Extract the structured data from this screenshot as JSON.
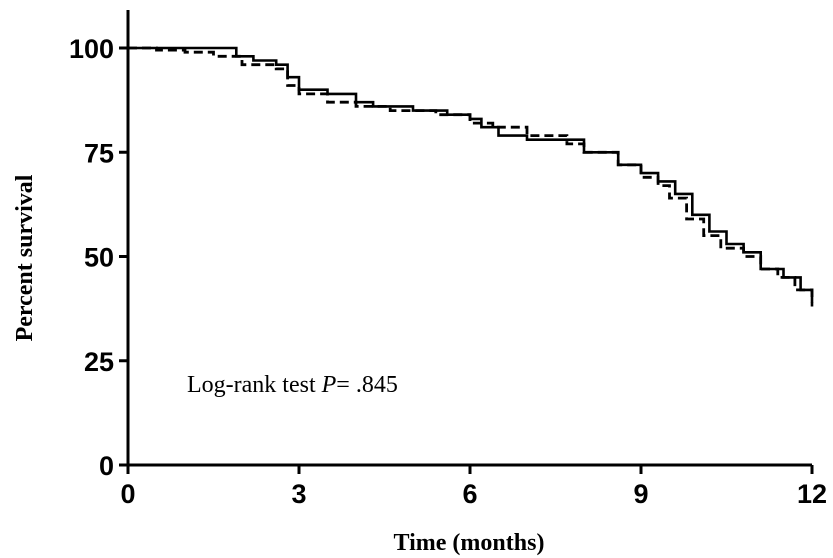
{
  "chart_data": {
    "type": "line",
    "subtype": "kaplan-meier",
    "xlabel": "Time (months)",
    "ylabel": "Percent survival",
    "xlim": [
      0,
      12
    ],
    "ylim": [
      0,
      110
    ],
    "xticks": [
      0,
      3,
      6,
      9,
      12
    ],
    "yticks": [
      0,
      25,
      50,
      75,
      100
    ],
    "grid": false,
    "annotation": {
      "prefix": "Log-rank test ",
      "italic": "P",
      "suffix": "= .845"
    },
    "series": [
      {
        "style": "solid",
        "points": [
          [
            0,
            100
          ],
          [
            1.8,
            100
          ],
          [
            1.9,
            98
          ],
          [
            2.2,
            97
          ],
          [
            2.6,
            96
          ],
          [
            2.8,
            93
          ],
          [
            3.0,
            90
          ],
          [
            3.5,
            89
          ],
          [
            4.0,
            87
          ],
          [
            4.3,
            86
          ],
          [
            5.0,
            85
          ],
          [
            5.6,
            84
          ],
          [
            6.0,
            83
          ],
          [
            6.2,
            81
          ],
          [
            6.5,
            79
          ],
          [
            7.0,
            78
          ],
          [
            7.7,
            78
          ],
          [
            8.0,
            75
          ],
          [
            8.6,
            72
          ],
          [
            9.0,
            70
          ],
          [
            9.3,
            68
          ],
          [
            9.6,
            65
          ],
          [
            9.9,
            60
          ],
          [
            10.2,
            56
          ],
          [
            10.5,
            53
          ],
          [
            10.8,
            51
          ],
          [
            11.1,
            47
          ],
          [
            11.5,
            45
          ],
          [
            11.8,
            42
          ],
          [
            12.0,
            38
          ]
        ]
      },
      {
        "style": "dashed",
        "points": [
          [
            0,
            100
          ],
          [
            0.5,
            99.5
          ],
          [
            1.0,
            99
          ],
          [
            1.5,
            98
          ],
          [
            2.0,
            96
          ],
          [
            2.6,
            95
          ],
          [
            2.8,
            91
          ],
          [
            3.0,
            89
          ],
          [
            3.5,
            87
          ],
          [
            4.0,
            86
          ],
          [
            4.6,
            85
          ],
          [
            5.4,
            84
          ],
          [
            6.0,
            82
          ],
          [
            6.4,
            81
          ],
          [
            7.0,
            79
          ],
          [
            7.7,
            77
          ],
          [
            8.0,
            75
          ],
          [
            8.6,
            72
          ],
          [
            9.0,
            69
          ],
          [
            9.3,
            67
          ],
          [
            9.5,
            64
          ],
          [
            9.8,
            59
          ],
          [
            10.1,
            55
          ],
          [
            10.4,
            52
          ],
          [
            10.8,
            50
          ],
          [
            11.1,
            47
          ],
          [
            11.4,
            45
          ],
          [
            11.7,
            42
          ],
          [
            12.0,
            39
          ]
        ]
      }
    ]
  }
}
